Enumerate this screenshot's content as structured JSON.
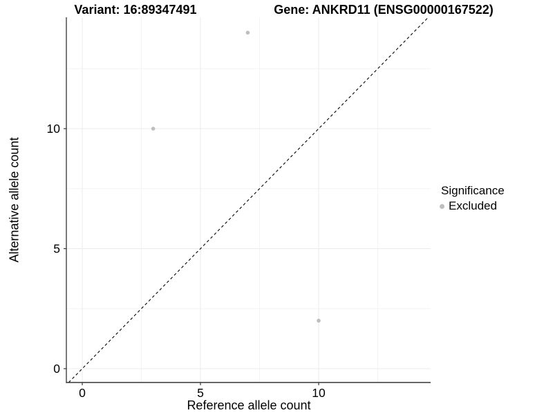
{
  "chart_data": {
    "type": "scatter",
    "title_left": "Variant: 16:89347491",
    "title_right": "Gene: ANKRD11 (ENSG00000167522)",
    "xlabel": "Reference allele count",
    "ylabel": "Alternative allele count",
    "xlim": [
      -0.7,
      14.7
    ],
    "ylim": [
      -0.6,
      14.6
    ],
    "x_ticks": [
      0,
      5,
      10
    ],
    "y_ticks": [
      0,
      5,
      10
    ],
    "x_minor_ticks": [
      2.5,
      7.5,
      12.5
    ],
    "y_minor_ticks": [
      2.5,
      7.5,
      12.5
    ],
    "grid": true,
    "legend_position": "right",
    "reference_line": {
      "type": "identity y=x",
      "style": "dashed",
      "color": "#000000"
    },
    "series": [
      {
        "name": "Excluded",
        "color": "#bebebe",
        "points": [
          {
            "x": 3,
            "y": 10
          },
          {
            "x": 7,
            "y": 14
          },
          {
            "x": 10,
            "y": 2
          }
        ]
      }
    ],
    "legend": {
      "title": "Significance",
      "entries": [
        {
          "label": "Excluded",
          "color": "#bebebe"
        }
      ]
    },
    "colors": {
      "point": "#bebebe",
      "grid_major": "#ebebeb",
      "grid_minor": "#f4f4f4",
      "axis_line": "#333333",
      "tick": "#333333",
      "text": "#000000",
      "reference_line": "#000000",
      "background": "#ffffff"
    }
  }
}
